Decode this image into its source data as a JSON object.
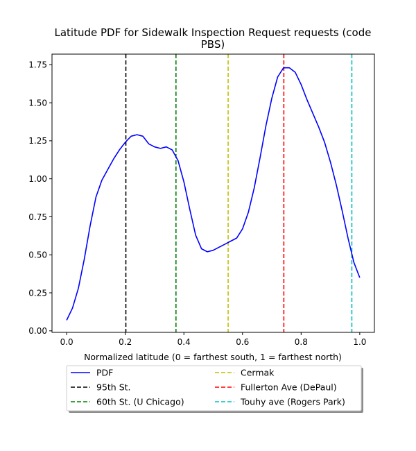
{
  "chart_data": {
    "type": "line",
    "title_lines": [
      "Latitude PDF for Sidewalk Inspection Request  requests (code",
      "PBS)"
    ],
    "xlabel": "Normalized latitude (0 = farthest south, 1 = farthest north)",
    "ylabel": "",
    "xlim": [
      -0.05,
      1.05
    ],
    "ylim": [
      -0.01,
      1.82
    ],
    "xticks": [
      "0.0",
      "0.2",
      "0.4",
      "0.6",
      "0.8",
      "1.0"
    ],
    "yticks": [
      "0.00",
      "0.25",
      "0.50",
      "0.75",
      "1.00",
      "1.25",
      "1.50",
      "1.75"
    ],
    "grid": false,
    "legend_placement": "below plot, two columns",
    "series": [
      {
        "name": "PDF",
        "color": "#0000ff",
        "style": "solid",
        "x": [
          0.0,
          0.02,
          0.04,
          0.06,
          0.08,
          0.1,
          0.12,
          0.14,
          0.16,
          0.18,
          0.2,
          0.22,
          0.24,
          0.26,
          0.28,
          0.3,
          0.32,
          0.34,
          0.36,
          0.38,
          0.4,
          0.42,
          0.44,
          0.46,
          0.48,
          0.5,
          0.52,
          0.54,
          0.56,
          0.58,
          0.6,
          0.62,
          0.64,
          0.66,
          0.68,
          0.7,
          0.72,
          0.74,
          0.76,
          0.78,
          0.8,
          0.82,
          0.84,
          0.86,
          0.88,
          0.9,
          0.92,
          0.94,
          0.96,
          0.98,
          1.0
        ],
        "y": [
          0.07,
          0.15,
          0.28,
          0.47,
          0.69,
          0.88,
          0.99,
          1.06,
          1.13,
          1.19,
          1.24,
          1.28,
          1.29,
          1.28,
          1.23,
          1.21,
          1.2,
          1.21,
          1.19,
          1.12,
          0.98,
          0.8,
          0.63,
          0.54,
          0.52,
          0.53,
          0.55,
          0.57,
          0.59,
          0.61,
          0.67,
          0.78,
          0.94,
          1.14,
          1.35,
          1.53,
          1.67,
          1.73,
          1.73,
          1.7,
          1.62,
          1.52,
          1.43,
          1.34,
          1.24,
          1.11,
          0.96,
          0.79,
          0.61,
          0.45,
          0.35
        ]
      }
    ],
    "reference_lines": [
      {
        "name": "95th St.",
        "x": 0.202,
        "color": "#000000",
        "style": "dashed"
      },
      {
        "name": "60th St. (U Chicago)",
        "x": 0.373,
        "color": "#008000",
        "style": "dashed"
      },
      {
        "name": "Cermak",
        "x": 0.551,
        "color": "#bfbf00",
        "style": "dashed"
      },
      {
        "name": "Fullerton Ave (DePaul)",
        "x": 0.741,
        "color": "#ff0000",
        "style": "dashed"
      },
      {
        "name": "Touhy ave (Rogers Park)",
        "x": 0.973,
        "color": "#00bfbf",
        "style": "dashed"
      }
    ]
  }
}
